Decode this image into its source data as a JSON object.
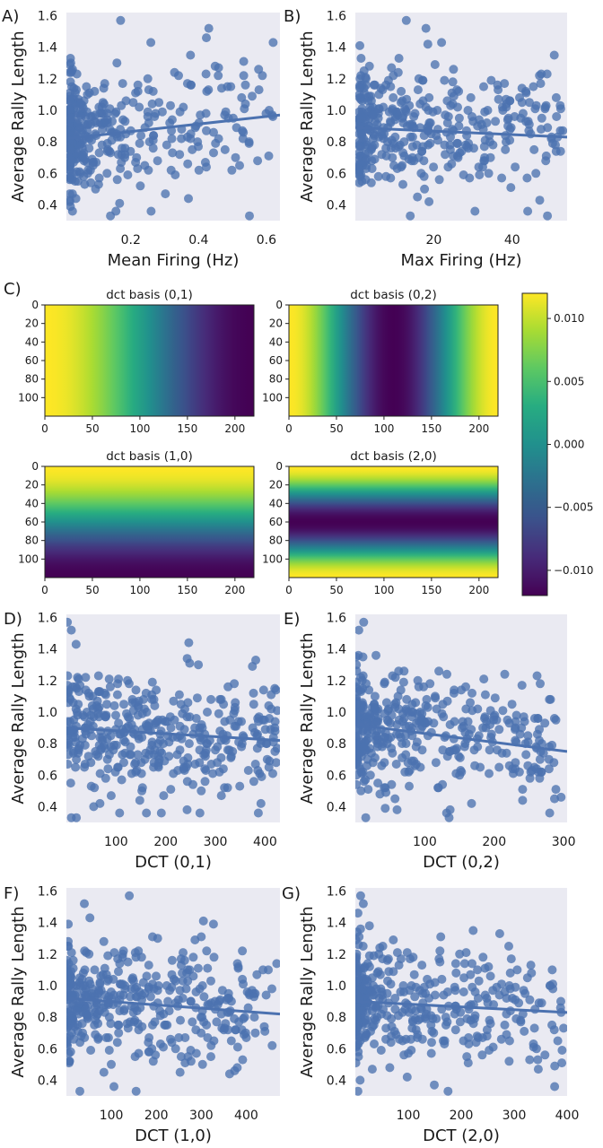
{
  "colors": {
    "panel_bg": "#eaeaf2",
    "point": "#4c72b0",
    "fit": "#4c72b0"
  },
  "panel_letters": {
    "A": "A)",
    "B": "B)",
    "C": "C)",
    "D": "D)",
    "E": "E)",
    "F": "F)",
    "G": "G)"
  },
  "chart_data": [
    {
      "id": "A",
      "type": "scatter",
      "xlabel": "Mean Firing (Hz)",
      "ylabel": "Average Rally Length",
      "xlim": [
        0.01,
        0.64
      ],
      "ylim": [
        0.3,
        1.62
      ],
      "xticks": [
        0.2,
        0.4,
        0.6
      ],
      "yticks": [
        0.4,
        0.6,
        0.8,
        1.0,
        1.2,
        1.4,
        1.6
      ],
      "x_decimals": 1,
      "grid": false,
      "fit_line": [
        [
          0.01,
          0.82
        ],
        [
          0.64,
          0.97
        ]
      ],
      "dist": {
        "xmin": 0.02,
        "xmax": 0.62,
        "skew": 3.2,
        "n": 380,
        "seed": 11
      },
      "extra_points": [
        [
          0.17,
          1.57
        ],
        [
          0.43,
          1.52
        ],
        [
          0.55,
          0.33
        ],
        [
          0.37,
          0.44
        ],
        [
          0.14,
          0.33
        ],
        [
          0.62,
          1.43
        ]
      ]
    },
    {
      "id": "B",
      "type": "scatter",
      "xlabel": "Max Firing (Hz)",
      "ylabel": "Average Rally Length",
      "xlim": [
        0,
        54
      ],
      "ylim": [
        0.3,
        1.62
      ],
      "xticks": [
        20,
        40
      ],
      "yticks": [
        0.4,
        0.6,
        0.8,
        1.0,
        1.2,
        1.4,
        1.6
      ],
      "x_decimals": 0,
      "grid": false,
      "fit_line": [
        [
          0,
          0.89
        ],
        [
          54,
          0.83
        ]
      ],
      "dist": {
        "xmin": 1,
        "xmax": 53,
        "skew": 2.0,
        "n": 380,
        "seed": 23
      },
      "extra_points": [
        [
          13,
          1.57
        ],
        [
          18,
          1.52
        ],
        [
          49,
          0.33
        ],
        [
          14,
          0.33
        ],
        [
          22,
          1.43
        ]
      ]
    },
    {
      "id": "D",
      "type": "scatter",
      "xlabel": "DCT (0,1)",
      "ylabel": "Average Rally Length",
      "xlim": [
        0,
        430
      ],
      "ylim": [
        0.3,
        1.62
      ],
      "xticks": [
        100,
        200,
        300,
        400
      ],
      "yticks": [
        0.4,
        0.6,
        0.8,
        1.0,
        1.2,
        1.4,
        1.6
      ],
      "x_decimals": 0,
      "grid": false,
      "fit_line": [
        [
          0,
          0.9
        ],
        [
          430,
          0.82
        ]
      ],
      "dist": {
        "xmin": 2,
        "xmax": 425,
        "skew": 1.4,
        "n": 400,
        "seed": 37
      },
      "extra_points": [
        [
          2,
          1.57
        ],
        [
          10,
          1.52
        ],
        [
          10,
          0.33
        ],
        [
          20,
          0.33
        ],
        [
          55,
          0.4
        ]
      ]
    },
    {
      "id": "E",
      "type": "scatter",
      "xlabel": "DCT (0,2)",
      "ylabel": "Average Rally Length",
      "xlim": [
        0,
        305
      ],
      "ylim": [
        0.3,
        1.62
      ],
      "xticks": [
        100,
        200,
        300
      ],
      "yticks": [
        0.4,
        0.6,
        0.8,
        1.0,
        1.2,
        1.4,
        1.6
      ],
      "x_decimals": 0,
      "grid": false,
      "fit_line": [
        [
          0,
          0.92
        ],
        [
          305,
          0.75
        ]
      ],
      "dist": {
        "xmin": 1,
        "xmax": 300,
        "skew": 2.0,
        "n": 400,
        "seed": 53
      },
      "extra_points": [
        [
          12,
          1.57
        ],
        [
          5,
          1.52
        ],
        [
          135,
          0.33
        ],
        [
          15,
          0.33
        ],
        [
          240,
          1.17
        ]
      ]
    },
    {
      "id": "F",
      "type": "scatter",
      "xlabel": "DCT (1,0)",
      "ylabel": "Average Rally Length",
      "xlim": [
        0,
        475
      ],
      "ylim": [
        0.3,
        1.62
      ],
      "xticks": [
        100,
        200,
        300,
        400
      ],
      "yticks": [
        0.4,
        0.6,
        0.8,
        1.0,
        1.2,
        1.4,
        1.6
      ],
      "x_decimals": 0,
      "grid": false,
      "fit_line": [
        [
          0,
          0.92
        ],
        [
          475,
          0.82
        ]
      ],
      "dist": {
        "xmin": 1,
        "xmax": 470,
        "skew": 1.8,
        "n": 400,
        "seed": 71
      },
      "extra_points": [
        [
          140,
          1.57
        ],
        [
          40,
          1.52
        ],
        [
          30,
          0.33
        ],
        [
          155,
          0.33
        ],
        [
          300,
          1.31
        ]
      ]
    },
    {
      "id": "G",
      "type": "scatter",
      "xlabel": "DCT (2,0)",
      "ylabel": "Average Rally Length",
      "xlim": [
        0,
        400
      ],
      "ylim": [
        0.3,
        1.62
      ],
      "xticks": [
        100,
        200,
        300,
        400
      ],
      "yticks": [
        0.4,
        0.6,
        0.8,
        1.0,
        1.2,
        1.4,
        1.6
      ],
      "x_decimals": 0,
      "grid": false,
      "fit_line": [
        [
          0,
          0.9
        ],
        [
          400,
          0.83
        ]
      ],
      "dist": {
        "xmin": 1,
        "xmax": 398,
        "skew": 2.3,
        "n": 400,
        "seed": 89
      },
      "extra_points": [
        [
          10,
          1.57
        ],
        [
          15,
          1.52
        ],
        [
          5,
          0.33
        ],
        [
          175,
          0.33
        ],
        [
          390,
          0.51
        ]
      ]
    }
  ],
  "heatmaps": {
    "type": "heatmap",
    "colormap": "viridis",
    "x_extent": [
      0,
      220
    ],
    "y_extent": [
      0,
      120
    ],
    "xticks": [
      0,
      50,
      100,
      150,
      200
    ],
    "yticks": [
      0,
      20,
      40,
      60,
      80,
      100
    ],
    "panels": [
      {
        "id": "h01",
        "title": "dct basis (0,1)",
        "axis": "x",
        "k": 1
      },
      {
        "id": "h02",
        "title": "dct basis (0,2)",
        "axis": "x",
        "k": 2
      },
      {
        "id": "h10",
        "title": "dct basis (1,0)",
        "axis": "y",
        "k": 1
      },
      {
        "id": "h20",
        "title": "dct basis (2,0)",
        "axis": "y",
        "k": 2
      }
    ],
    "colorbar": {
      "min": -0.012,
      "max": 0.012,
      "ticks": [
        0.01,
        0.005,
        0.0,
        -0.005,
        -0.01
      ],
      "tick_labels": [
        "0.010",
        "0.005",
        "0.000",
        "−0.005",
        "−0.010"
      ]
    }
  }
}
